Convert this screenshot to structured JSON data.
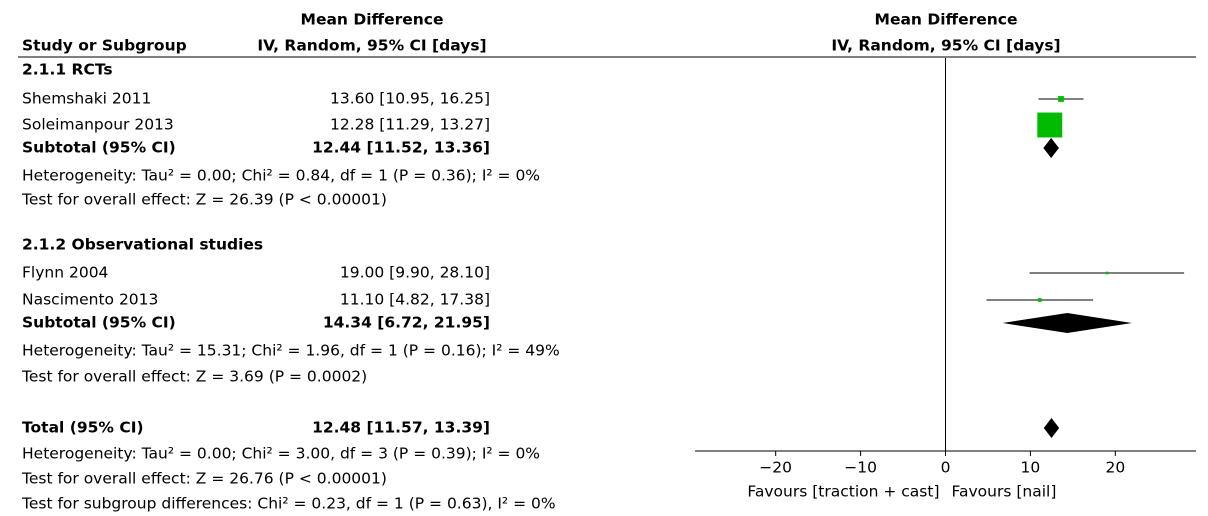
{
  "header": {
    "study_col": "Study or Subgroup",
    "estimate_line1": "Mean Difference",
    "estimate_line2": "IV, Random, 95% CI [days]",
    "plot_line1": "Mean Difference",
    "plot_line2": "IV, Random, 95% CI [days]"
  },
  "chart_data": {
    "type": "forest",
    "xlim": [
      -29.5,
      29.5
    ],
    "xticks": [
      {
        "value": -20,
        "label": "−20"
      },
      {
        "value": -10,
        "label": "−10"
      },
      0,
      10,
      20
    ],
    "left_label": "Favours [traction + cast]",
    "right_label": "Favours [nail]",
    "marker_color": "#00bb00",
    "subgroups": [
      {
        "title": "2.1.1 RCTs",
        "studies": [
          {
            "name": "Shemshaki 2011",
            "md": 13.6,
            "ci": [
              10.95,
              16.25
            ],
            "value_label": "13.60 [10.95, 16.25]",
            "weight": 5
          },
          {
            "name": "Soleimanpour 2013",
            "md": 12.28,
            "ci": [
              11.29,
              13.27
            ],
            "value_label": "12.28 [11.29, 13.27]",
            "weight": 92
          }
        ],
        "subtotal": {
          "name": "Subtotal (95% CI)",
          "md": 12.44,
          "ci": [
            11.52,
            13.36
          ],
          "value_label": "12.44 [11.52, 13.36]"
        },
        "heterogeneity": "Heterogeneity: Tau² = 0.00; Chi² = 0.84, df = 1 (P = 0.36); I² = 0%",
        "overall_effect": "Test for overall effect: Z = 26.39 (P < 0.00001)"
      },
      {
        "title": "2.1.2 Observational studies",
        "studies": [
          {
            "name": "Flynn 2004",
            "md": 19.0,
            "ci": [
              9.9,
              28.1
            ],
            "value_label": "19.00 [9.90, 28.10]",
            "weight": 1
          },
          {
            "name": "Nascimento 2013",
            "md": 11.1,
            "ci": [
              4.82,
              17.38
            ],
            "value_label": "11.10 [4.82, 17.38]",
            "weight": 2
          }
        ],
        "subtotal": {
          "name": "Subtotal (95% CI)",
          "md": 14.34,
          "ci": [
            6.72,
            21.95
          ],
          "value_label": "14.34 [6.72, 21.95]"
        },
        "heterogeneity": "Heterogeneity: Tau² = 15.31; Chi² = 1.96, df = 1 (P = 0.16); I² = 49%",
        "overall_effect": "Test for overall effect: Z = 3.69 (P = 0.0002)"
      }
    ],
    "total": {
      "name": "Total (95% CI)",
      "md": 12.48,
      "ci": [
        11.57,
        13.39
      ],
      "value_label": "12.48 [11.57, 13.39]",
      "heterogeneity": "Heterogeneity: Tau² = 0.00; Chi² = 3.00, df = 3 (P = 0.39); I² = 0%",
      "overall_effect": "Test for overall effect: Z = 26.76 (P < 0.00001)",
      "subgroup_differences": "Test for subgroup differences: Chi² = 0.23, df = 1 (P = 0.63), I² = 0%"
    }
  }
}
